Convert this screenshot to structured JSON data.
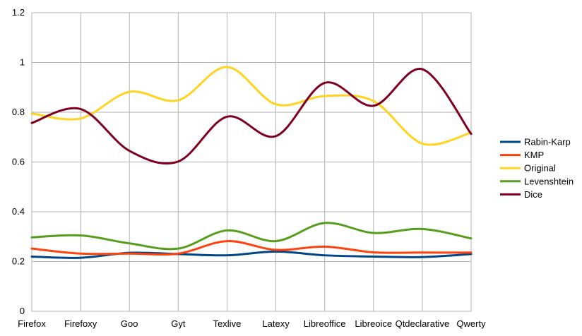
{
  "chart_data": {
    "type": "line",
    "smooth": true,
    "title": "",
    "xlabel": "",
    "ylabel": "",
    "categories": [
      "Firefox",
      "Firefoxy",
      "Goo",
      "Gyt",
      "Texlive",
      "Latexy",
      "Libreoffice",
      "Libreoice",
      "Qtdeclarative",
      "Qwerty"
    ],
    "ylim": [
      0,
      1.2
    ],
    "yticks": [
      "0",
      "0.2",
      "0.4",
      "0.6",
      "0.8",
      "1",
      "1.2"
    ],
    "grid": true,
    "legend_position": "right",
    "series": [
      {
        "name": "Rabin-Karp",
        "color": "#004586",
        "values": [
          0.22,
          0.215,
          0.235,
          0.23,
          0.225,
          0.24,
          0.225,
          0.22,
          0.218,
          0.23
        ]
      },
      {
        "name": "KMP",
        "color": "#ff420e",
        "values": [
          0.252,
          0.232,
          0.232,
          0.232,
          0.282,
          0.247,
          0.26,
          0.237,
          0.236,
          0.236
        ]
      },
      {
        "name": "Original",
        "color": "#ffd320",
        "values": [
          0.795,
          0.775,
          0.882,
          0.848,
          0.982,
          0.832,
          0.865,
          0.845,
          0.674,
          0.718
        ]
      },
      {
        "name": "Levenshtein",
        "color": "#579d1c",
        "values": [
          0.297,
          0.305,
          0.273,
          0.252,
          0.325,
          0.282,
          0.355,
          0.315,
          0.331,
          0.293
        ]
      },
      {
        "name": "Dice",
        "color": "#7e0021",
        "values": [
          0.757,
          0.813,
          0.645,
          0.602,
          0.782,
          0.704,
          0.918,
          0.826,
          0.973,
          0.713
        ]
      }
    ]
  }
}
